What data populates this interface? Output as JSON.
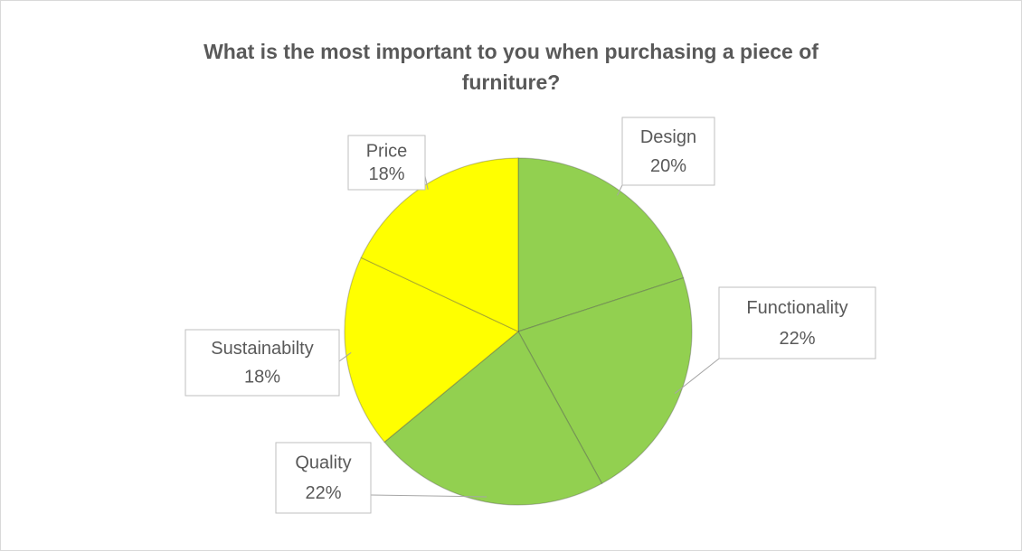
{
  "chart_data": {
    "type": "pie",
    "title": "What is the most important to you when purchasing a piece of furniture?",
    "categories": [
      "Design",
      "Functionality",
      "Quality",
      "Sustainabilty",
      "Price"
    ],
    "values": [
      20,
      22,
      22,
      18,
      18
    ],
    "value_labels": [
      "20%",
      "22%",
      "22%",
      "18%",
      "18%"
    ],
    "colors": [
      "#92d050",
      "#92d050",
      "#92d050",
      "#ffff00",
      "#ffff00"
    ]
  }
}
